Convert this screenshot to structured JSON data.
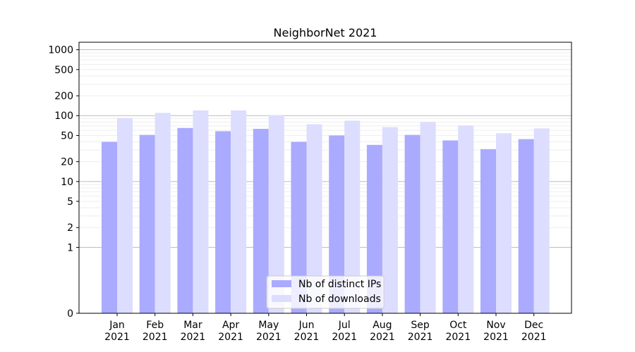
{
  "chart_data": {
    "type": "bar",
    "title": "NeighborNet 2021",
    "xlabel": "",
    "ylabel": "",
    "y_scale": "symlog",
    "ylim": [
      0,
      1300
    ],
    "y_ticks": [
      0,
      1,
      2,
      5,
      10,
      20,
      50,
      100,
      200,
      500,
      1000
    ],
    "categories": [
      {
        "month": "Jan",
        "year": "2021"
      },
      {
        "month": "Feb",
        "year": "2021"
      },
      {
        "month": "Mar",
        "year": "2021"
      },
      {
        "month": "Apr",
        "year": "2021"
      },
      {
        "month": "May",
        "year": "2021"
      },
      {
        "month": "Jun",
        "year": "2021"
      },
      {
        "month": "Jul",
        "year": "2021"
      },
      {
        "month": "Aug",
        "year": "2021"
      },
      {
        "month": "Sep",
        "year": "2021"
      },
      {
        "month": "Oct",
        "year": "2021"
      },
      {
        "month": "Nov",
        "year": "2021"
      },
      {
        "month": "Dec",
        "year": "2021"
      }
    ],
    "series": [
      {
        "name": "Nb of distinct IPs",
        "color": "#aaaaff",
        "values": [
          40,
          51,
          65,
          58,
          63,
          40,
          50,
          36,
          51,
          42,
          31,
          44
        ]
      },
      {
        "name": "Nb of downloads",
        "color": "#ddddff",
        "values": [
          92,
          110,
          120,
          120,
          102,
          74,
          84,
          67,
          80,
          71,
          54,
          64
        ]
      }
    ],
    "grid": true,
    "legend_position": "bottom-center"
  }
}
